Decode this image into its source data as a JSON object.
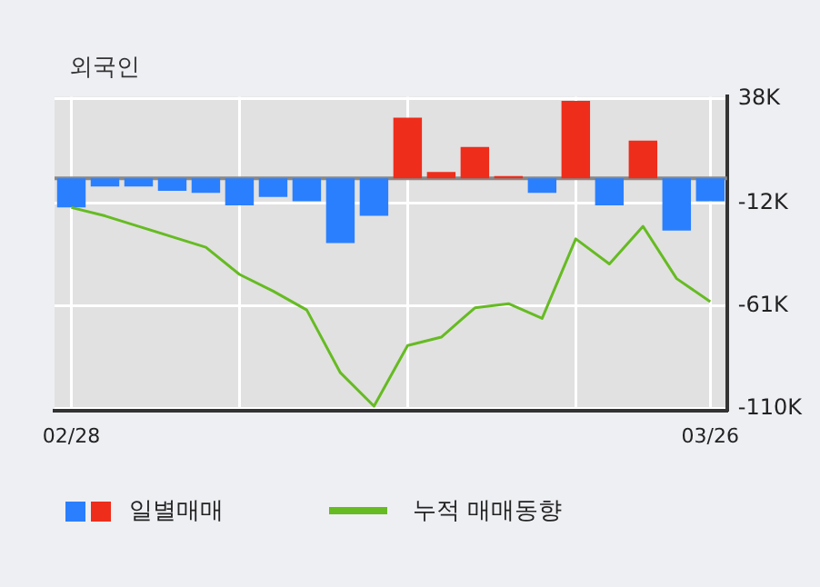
{
  "chart_data": {
    "type": "bar",
    "title": "외국인",
    "categories": [
      "02/28",
      null,
      null,
      null,
      null,
      null,
      null,
      null,
      null,
      null,
      null,
      null,
      null,
      null,
      null,
      null,
      null,
      null,
      null,
      "03/26"
    ],
    "series": [
      {
        "name": "일별매매",
        "colors": [
          "#2a7fff",
          "#2a7fff",
          "#2a7fff",
          "#2a7fff",
          "#2a7fff",
          "#2a7fff",
          "#2a7fff",
          "#2a7fff",
          "#2a7fff",
          "#2a7fff",
          "#ee2d1b",
          "#ee2d1b",
          "#ee2d1b",
          "#ee2d1b",
          "#2a7fff",
          "#ee2d1b",
          "#2a7fff",
          "#ee2d1b",
          "#2a7fff",
          "#2a7fff"
        ],
        "values": [
          -14,
          -4,
          -4,
          -6,
          -7,
          -13,
          -9,
          -11,
          -31,
          -18,
          29,
          3,
          15,
          1,
          -7,
          37,
          -13,
          18,
          -25,
          -11
        ]
      },
      {
        "name": "누적 매매동향",
        "type": "line",
        "color": "#66bb22",
        "values": [
          -14,
          -18,
          -23,
          -28,
          -33,
          -46,
          -54,
          -63,
          -93,
          -109,
          -80,
          -76,
          -62,
          -60,
          -67,
          -29,
          -41,
          -23,
          -48,
          -59
        ]
      }
    ],
    "ylim": [
      -111,
      39
    ],
    "yticks": [
      {
        "value": 38,
        "label": "38K"
      },
      {
        "value": -12,
        "label": "-12K"
      },
      {
        "value": -61,
        "label": "-61K"
      },
      {
        "value": -110,
        "label": "-110K"
      }
    ],
    "grid": true,
    "legend": "bottom",
    "marker": "none"
  }
}
